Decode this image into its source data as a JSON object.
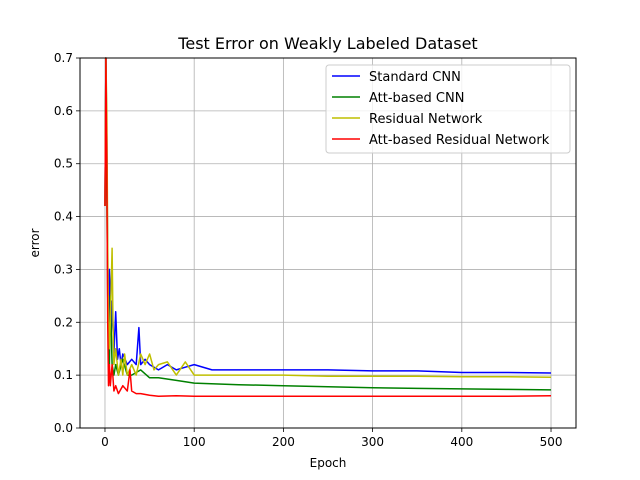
{
  "chart_data": {
    "type": "line",
    "title": "Test Error on Weakly Labeled Dataset",
    "xlabel": "Epoch",
    "ylabel": "error",
    "xlim": [
      -28,
      528
    ],
    "ylim": [
      0.0,
      0.7
    ],
    "xticks": [
      0,
      100,
      200,
      300,
      400,
      500
    ],
    "yticks": [
      0.0,
      0.1,
      0.2,
      0.3,
      0.4,
      0.5,
      0.6,
      0.7
    ],
    "xtick_labels": [
      "0",
      "100",
      "200",
      "300",
      "400",
      "500"
    ],
    "ytick_labels": [
      "0.0",
      "0.1",
      "0.2",
      "0.3",
      "0.4",
      "0.5",
      "0.6",
      "0.7"
    ],
    "grid": true,
    "legend_position": "top-right",
    "series": [
      {
        "name": "Standard CNN",
        "color": "#0000ff",
        "x": [
          0,
          1,
          2,
          3,
          4,
          5,
          6,
          7,
          8,
          10,
          12,
          14,
          16,
          18,
          20,
          25,
          30,
          35,
          38,
          40,
          45,
          50,
          60,
          70,
          80,
          90,
          100,
          120,
          150,
          200,
          250,
          300,
          350,
          400,
          450,
          500
        ],
        "y": [
          0.42,
          0.7,
          0.55,
          0.3,
          0.2,
          0.3,
          0.25,
          0.18,
          0.24,
          0.14,
          0.22,
          0.13,
          0.15,
          0.12,
          0.14,
          0.12,
          0.13,
          0.12,
          0.19,
          0.12,
          0.13,
          0.12,
          0.11,
          0.12,
          0.11,
          0.115,
          0.12,
          0.11,
          0.11,
          0.11,
          0.11,
          0.108,
          0.108,
          0.105,
          0.105,
          0.104
        ]
      },
      {
        "name": "Att-based CNN",
        "color": "#008000",
        "x": [
          0,
          1,
          2,
          3,
          4,
          5,
          6,
          8,
          10,
          12,
          15,
          20,
          25,
          30,
          40,
          50,
          60,
          80,
          100,
          150,
          200,
          250,
          300,
          350,
          400,
          450,
          500
        ],
        "y": [
          0.42,
          0.7,
          0.45,
          0.25,
          0.15,
          0.12,
          0.25,
          0.12,
          0.1,
          0.12,
          0.1,
          0.13,
          0.1,
          0.1,
          0.11,
          0.095,
          0.095,
          0.09,
          0.085,
          0.082,
          0.08,
          0.078,
          0.076,
          0.075,
          0.074,
          0.073,
          0.072
        ]
      },
      {
        "name": "Residual Network",
        "color": "#bfbf00",
        "x": [
          0,
          1,
          2,
          3,
          4,
          5,
          6,
          8,
          9,
          10,
          12,
          15,
          18,
          20,
          22,
          25,
          30,
          35,
          40,
          45,
          50,
          55,
          60,
          70,
          80,
          90,
          100,
          150,
          200,
          250,
          300,
          350,
          400,
          450,
          500
        ],
        "y": [
          0.42,
          0.7,
          0.6,
          0.35,
          0.2,
          0.15,
          0.2,
          0.34,
          0.2,
          0.12,
          0.15,
          0.1,
          0.13,
          0.1,
          0.14,
          0.1,
          0.12,
          0.1,
          0.14,
          0.12,
          0.14,
          0.11,
          0.12,
          0.125,
          0.1,
          0.125,
          0.1,
          0.1,
          0.1,
          0.098,
          0.098,
          0.098,
          0.097,
          0.097,
          0.096
        ]
      },
      {
        "name": "Att-based Residual Network",
        "color": "#ff0000",
        "x": [
          0,
          1,
          2,
          3,
          4,
          5,
          6,
          8,
          10,
          12,
          15,
          20,
          25,
          28,
          30,
          35,
          40,
          50,
          60,
          80,
          100,
          150,
          200,
          250,
          300,
          350,
          400,
          450,
          500
        ],
        "y": [
          0.42,
          0.7,
          0.5,
          0.2,
          0.08,
          0.12,
          0.08,
          0.12,
          0.07,
          0.08,
          0.065,
          0.08,
          0.07,
          0.11,
          0.07,
          0.065,
          0.065,
          0.062,
          0.06,
          0.061,
          0.06,
          0.06,
          0.06,
          0.06,
          0.06,
          0.06,
          0.06,
          0.06,
          0.061
        ]
      }
    ]
  }
}
